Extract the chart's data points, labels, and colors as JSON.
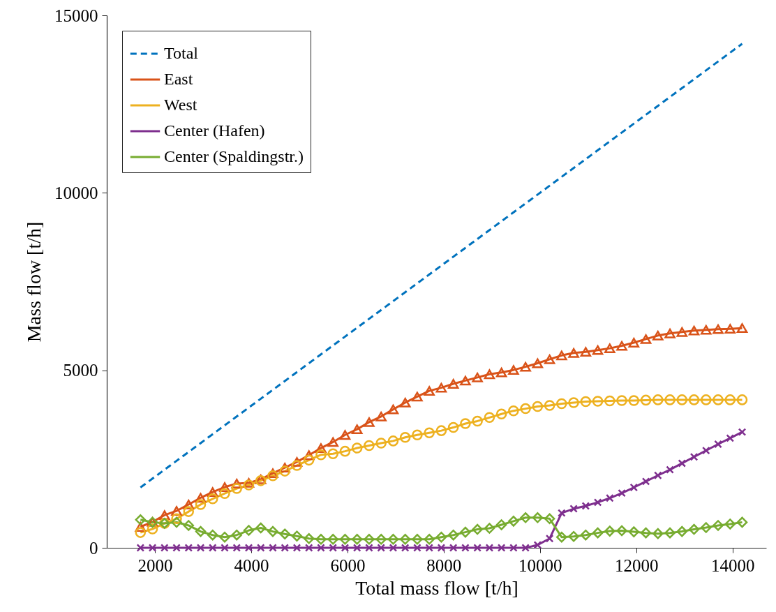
{
  "chart_data": {
    "type": "line",
    "xlabel": "Total mass flow [t/h]",
    "ylabel": "Mass flow [t/h]",
    "x": [
      1700,
      1950,
      2200,
      2450,
      2700,
      2950,
      3200,
      3450,
      3700,
      3950,
      4200,
      4450,
      4700,
      4950,
      5200,
      5450,
      5700,
      5950,
      6200,
      6450,
      6700,
      6950,
      7200,
      7450,
      7700,
      7950,
      8200,
      8450,
      8700,
      8950,
      9200,
      9450,
      9700,
      9950,
      10200,
      10450,
      10700,
      10950,
      11200,
      11450,
      11700,
      11950,
      12200,
      12450,
      12700,
      12950,
      13200,
      13450,
      13700,
      13950,
      14200
    ],
    "series": [
      {
        "name": "Total",
        "color": "#0072bd",
        "line_style": "dashed",
        "marker": "none",
        "values": [
          1700,
          1950,
          2200,
          2450,
          2700,
          2950,
          3200,
          3450,
          3700,
          3950,
          4200,
          4450,
          4700,
          4950,
          5200,
          5450,
          5700,
          5950,
          6200,
          6450,
          6700,
          6950,
          7200,
          7450,
          7700,
          7950,
          8200,
          8450,
          8700,
          8950,
          9200,
          9450,
          9700,
          9950,
          10200,
          10450,
          10700,
          10950,
          11200,
          11450,
          11700,
          11950,
          12200,
          12450,
          12700,
          12950,
          13200,
          13450,
          13700,
          13950,
          14200
        ]
      },
      {
        "name": "East",
        "color": "#d95319",
        "line_style": "solid",
        "marker": "triangle",
        "values": [
          590,
          730,
          920,
          1040,
          1220,
          1410,
          1570,
          1710,
          1810,
          1830,
          1930,
          2100,
          2260,
          2420,
          2610,
          2810,
          2980,
          3180,
          3340,
          3540,
          3700,
          3900,
          4090,
          4260,
          4420,
          4510,
          4620,
          4710,
          4800,
          4890,
          4940,
          5010,
          5100,
          5200,
          5310,
          5420,
          5490,
          5520,
          5570,
          5620,
          5690,
          5780,
          5880,
          5980,
          6040,
          6080,
          6120,
          6140,
          6160,
          6170,
          6190
        ]
      },
      {
        "name": "West",
        "color": "#edb120",
        "line_style": "solid",
        "marker": "circle",
        "values": [
          430,
          530,
          690,
          820,
          1020,
          1220,
          1380,
          1530,
          1670,
          1770,
          1890,
          2030,
          2160,
          2320,
          2470,
          2620,
          2650,
          2720,
          2810,
          2880,
          2950,
          3010,
          3110,
          3180,
          3240,
          3300,
          3390,
          3500,
          3570,
          3670,
          3770,
          3860,
          3920,
          3980,
          4010,
          4060,
          4090,
          4120,
          4130,
          4140,
          4150,
          4150,
          4160,
          4170,
          4170,
          4170,
          4170,
          4170,
          4170,
          4170,
          4170
        ]
      },
      {
        "name": "Center (Hafen)",
        "color": "#7e2f8e",
        "line_style": "solid",
        "marker": "cross",
        "values": [
          0,
          0,
          0,
          0,
          0,
          0,
          0,
          0,
          0,
          0,
          0,
          0,
          0,
          0,
          0,
          0,
          0,
          0,
          0,
          0,
          0,
          0,
          0,
          0,
          0,
          0,
          0,
          0,
          0,
          0,
          0,
          0,
          0,
          80,
          260,
          980,
          1100,
          1180,
          1280,
          1400,
          1540,
          1700,
          1870,
          2040,
          2200,
          2380,
          2560,
          2740,
          2920,
          3090,
          3260
        ]
      },
      {
        "name": "Center (Spaldingstr.)",
        "color": "#77ac30",
        "line_style": "solid",
        "marker": "diamond",
        "values": [
          790,
          720,
          690,
          720,
          630,
          460,
          360,
          300,
          360,
          490,
          560,
          460,
          390,
          330,
          260,
          240,
          240,
          240,
          240,
          240,
          240,
          240,
          240,
          240,
          240,
          300,
          360,
          440,
          520,
          550,
          650,
          750,
          850,
          850,
          820,
          300,
          320,
          360,
          420,
          470,
          480,
          450,
          420,
          400,
          420,
          460,
          520,
          570,
          630,
          670,
          720
        ]
      }
    ],
    "xlim": [
      1000,
      14700
    ],
    "xticks": [
      2000,
      4000,
      6000,
      8000,
      10000,
      12000,
      14000
    ],
    "ylim": [
      0,
      15000
    ],
    "yticks": [
      0,
      5000,
      10000,
      15000
    ],
    "grid": false,
    "legend": "top left"
  }
}
